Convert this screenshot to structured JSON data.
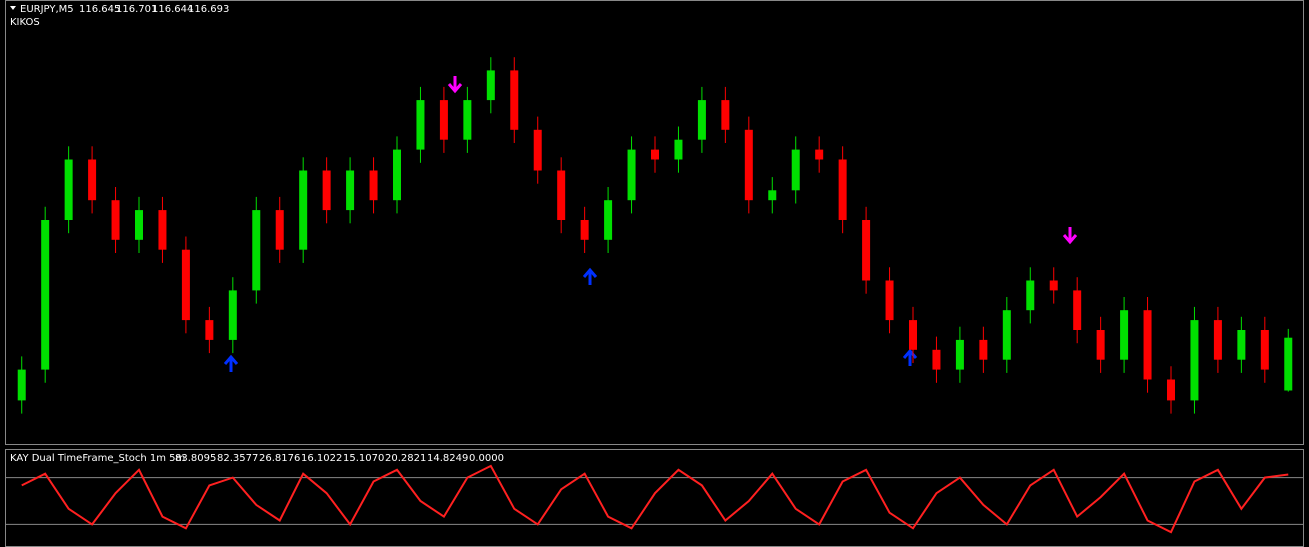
{
  "chart_data": {
    "type": "candlestick",
    "title": "EURJPY,M5",
    "subtitle": "KIKOS",
    "up_color": "#00e000",
    "down_color": "#ff0000",
    "ylim": [
      116.6,
      117.0
    ],
    "open": [
      116.636,
      116.664,
      116.8,
      116.855,
      116.818,
      116.782,
      116.809,
      116.773,
      116.709,
      116.691,
      116.736,
      116.809,
      116.773,
      116.845,
      116.809,
      116.845,
      116.818,
      116.864,
      116.909,
      116.873,
      116.909,
      116.936,
      116.882,
      116.845,
      116.8,
      116.782,
      116.818,
      116.864,
      116.855,
      116.873,
      116.909,
      116.882,
      116.818,
      116.827,
      116.864,
      116.855,
      116.8,
      116.745,
      116.709,
      116.682,
      116.664,
      116.691,
      116.673,
      116.718,
      116.745,
      116.736,
      116.7,
      116.673,
      116.718,
      116.655,
      116.636,
      116.709,
      116.673,
      116.7,
      116.645
    ],
    "high": [
      116.676,
      116.812,
      116.867,
      116.867,
      116.83,
      116.821,
      116.821,
      116.785,
      116.721,
      116.748,
      116.821,
      116.821,
      116.857,
      116.857,
      116.857,
      116.857,
      116.876,
      116.921,
      116.921,
      116.921,
      116.948,
      116.948,
      116.894,
      116.857,
      116.812,
      116.83,
      116.876,
      116.876,
      116.885,
      116.921,
      116.921,
      116.894,
      116.839,
      116.876,
      116.876,
      116.867,
      116.812,
      116.757,
      116.721,
      116.694,
      116.703,
      116.703,
      116.73,
      116.757,
      116.757,
      116.748,
      116.712,
      116.73,
      116.73,
      116.667,
      116.721,
      116.721,
      116.712,
      116.712,
      116.701
    ],
    "low": [
      116.624,
      116.652,
      116.788,
      116.806,
      116.77,
      116.77,
      116.761,
      116.697,
      116.679,
      116.679,
      116.724,
      116.761,
      116.761,
      116.797,
      116.797,
      116.806,
      116.806,
      116.852,
      116.861,
      116.861,
      116.897,
      116.87,
      116.833,
      116.788,
      116.77,
      116.77,
      116.806,
      116.843,
      116.843,
      116.861,
      116.87,
      116.806,
      116.806,
      116.815,
      116.843,
      116.788,
      116.733,
      116.697,
      116.67,
      116.652,
      116.652,
      116.661,
      116.661,
      116.706,
      116.724,
      116.688,
      116.661,
      116.661,
      116.643,
      116.624,
      116.624,
      116.661,
      116.661,
      116.652,
      116.644
    ],
    "close": [
      116.664,
      116.8,
      116.855,
      116.818,
      116.782,
      116.809,
      116.773,
      116.709,
      116.691,
      116.736,
      116.809,
      116.773,
      116.845,
      116.809,
      116.845,
      116.818,
      116.864,
      116.909,
      116.873,
      116.909,
      116.936,
      116.882,
      116.845,
      116.8,
      116.782,
      116.818,
      116.864,
      116.855,
      116.873,
      116.909,
      116.882,
      116.818,
      116.827,
      116.864,
      116.855,
      116.8,
      116.745,
      116.709,
      116.682,
      116.664,
      116.691,
      116.673,
      116.718,
      116.745,
      116.736,
      116.7,
      116.673,
      116.718,
      116.655,
      116.636,
      116.709,
      116.673,
      116.7,
      116.664,
      116.693
    ],
    "indicator": {
      "title": "KAY Dual TimeFrame_Stoch 1m 5m",
      "readouts": [
        83.8095,
        82.3577,
        26.8176,
        16.1022,
        {
          "value": 15.107,
          "label": "15.1070"
        },
        20.2821,
        14.8249,
        {
          "value": 0,
          "label": "0.0000"
        }
      ],
      "ylim": [
        0,
        100
      ],
      "levels": [
        20,
        80
      ],
      "color": "#ff2020",
      "values": [
        70,
        85,
        40,
        20,
        60,
        90,
        30,
        15,
        70,
        80,
        45,
        25,
        85,
        60,
        20,
        75,
        90,
        50,
        30,
        80,
        95,
        40,
        20,
        65,
        85,
        30,
        15,
        60,
        90,
        70,
        25,
        50,
        85,
        40,
        20,
        75,
        90,
        35,
        15,
        60,
        80,
        45,
        20,
        70,
        90,
        30,
        55,
        85,
        25,
        10,
        75,
        90,
        40,
        80,
        84
      ]
    }
  }
}
